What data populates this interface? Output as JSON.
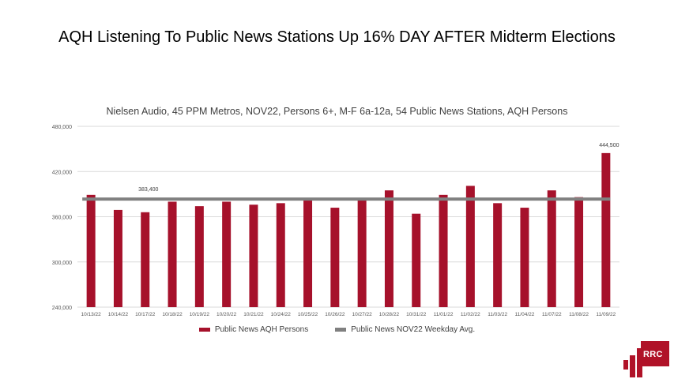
{
  "slide": {
    "title": "AQH Listening To Public News Stations Up 16% DAY AFTER Midterm Elections",
    "logo_text": "RRC"
  },
  "colors": {
    "bar": "#a6112b",
    "avg_line": "#808080",
    "grid": "#d9d9d9"
  },
  "chart_data": {
    "type": "bar",
    "title": "Nielsen Audio, 45 PPM Metros, NOV22, Persons 6+, M-F 6a-12a, 54 Public News Stations, AQH Persons",
    "categories": [
      "10/13/22",
      "10/14/22",
      "10/17/22",
      "10/18/22",
      "10/19/22",
      "10/20/22",
      "10/21/22",
      "10/24/22",
      "10/25/22",
      "10/26/22",
      "10/27/22",
      "10/28/22",
      "10/31/22",
      "11/01/22",
      "11/02/22",
      "11/03/22",
      "11/04/22",
      "11/07/22",
      "11/08/22",
      "11/09/22"
    ],
    "series": [
      {
        "name": "Public News AQH Persons",
        "values": [
          389000,
          369000,
          366000,
          380000,
          374000,
          380000,
          376000,
          378000,
          383000,
          372000,
          384000,
          395000,
          364000,
          389000,
          401000,
          378000,
          372000,
          395000,
          386000,
          444500
        ]
      },
      {
        "name": "Public News NOV22 Weekday Avg.",
        "value": 383400
      }
    ],
    "ylim": [
      240000,
      480000
    ],
    "yticks": [
      240000,
      300000,
      360000,
      420000,
      480000
    ],
    "ytick_labels": [
      "240,000",
      "300,000",
      "360,000",
      "420,000",
      "480,000"
    ],
    "annotations": [
      {
        "category": "11/09/22",
        "text": "444,500"
      },
      {
        "category": "10/17/22",
        "text": "383,400"
      }
    ],
    "grid": true,
    "legend_position": "bottom"
  }
}
